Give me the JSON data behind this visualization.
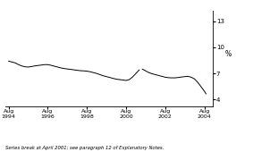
{
  "title": "",
  "ylabel": "%",
  "footnote": "Series break at April 2001; see paragraph 12 of Explanatory Notes.",
  "yticks": [
    4,
    7,
    10,
    13
  ],
  "ylim": [
    3.2,
    14.2
  ],
  "xlim_start": 1994.4,
  "xlim_end": 2005.0,
  "xtick_positions": [
    1994.583,
    1996.583,
    1998.583,
    2000.583,
    2002.583,
    2004.583
  ],
  "xtick_labels": [
    "Aug\n1994",
    "Aug\n1996",
    "Aug\n1998",
    "Aug\n2000",
    "Aug\n2002",
    "Aug\n2004"
  ],
  "line_color": "#000000",
  "line_width": 0.7,
  "background_color": "#ffffff",
  "series_break_x": 2001.25,
  "data": [
    [
      1994.583,
      8.4
    ],
    [
      1994.75,
      8.3
    ],
    [
      1994.917,
      8.2
    ],
    [
      1995.083,
      8.0
    ],
    [
      1995.25,
      7.85
    ],
    [
      1995.417,
      7.75
    ],
    [
      1995.583,
      7.72
    ],
    [
      1995.75,
      7.78
    ],
    [
      1995.917,
      7.85
    ],
    [
      1996.083,
      7.9
    ],
    [
      1996.25,
      7.95
    ],
    [
      1996.417,
      8.0
    ],
    [
      1996.583,
      8.0
    ],
    [
      1996.75,
      7.92
    ],
    [
      1996.917,
      7.82
    ],
    [
      1997.083,
      7.72
    ],
    [
      1997.25,
      7.62
    ],
    [
      1997.417,
      7.55
    ],
    [
      1997.583,
      7.5
    ],
    [
      1997.75,
      7.45
    ],
    [
      1997.917,
      7.4
    ],
    [
      1998.083,
      7.35
    ],
    [
      1998.25,
      7.3
    ],
    [
      1998.417,
      7.28
    ],
    [
      1998.583,
      7.25
    ],
    [
      1998.75,
      7.18
    ],
    [
      1998.917,
      7.08
    ],
    [
      1999.083,
      6.98
    ],
    [
      1999.25,
      6.85
    ],
    [
      1999.417,
      6.72
    ],
    [
      1999.583,
      6.62
    ],
    [
      1999.75,
      6.52
    ],
    [
      1999.917,
      6.42
    ],
    [
      2000.083,
      6.33
    ],
    [
      2000.25,
      6.28
    ],
    [
      2000.417,
      6.23
    ],
    [
      2000.583,
      6.18
    ],
    [
      2000.75,
      6.28
    ],
    [
      2000.917,
      6.58
    ],
    [
      2001.083,
      6.98
    ],
    [
      2001.25,
      7.38
    ],
    [
      2001.417,
      7.48
    ],
    [
      2001.583,
      7.28
    ],
    [
      2001.75,
      7.08
    ],
    [
      2001.917,
      6.95
    ],
    [
      2002.083,
      6.85
    ],
    [
      2002.25,
      6.75
    ],
    [
      2002.417,
      6.65
    ],
    [
      2002.583,
      6.55
    ],
    [
      2002.75,
      6.5
    ],
    [
      2002.917,
      6.48
    ],
    [
      2003.083,
      6.48
    ],
    [
      2003.25,
      6.52
    ],
    [
      2003.417,
      6.58
    ],
    [
      2003.583,
      6.62
    ],
    [
      2003.75,
      6.65
    ],
    [
      2003.917,
      6.55
    ],
    [
      2004.083,
      6.35
    ],
    [
      2004.25,
      5.95
    ],
    [
      2004.417,
      5.45
    ],
    [
      2004.583,
      4.95
    ],
    [
      2004.667,
      4.65
    ]
  ]
}
